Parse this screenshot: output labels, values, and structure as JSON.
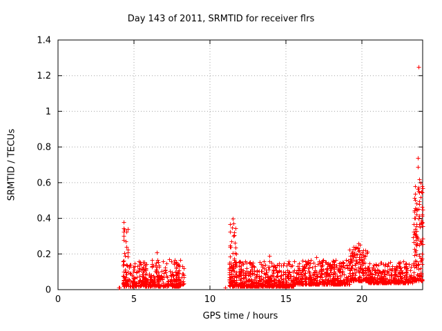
{
  "chart_data": {
    "type": "scatter",
    "title": "Day 143 of 2011, SRMTID for receiver flrs",
    "xlabel": "GPS time / hours",
    "ylabel": "SRMTID / TECUs",
    "xlim": [
      0,
      24
    ],
    "ylim": [
      0,
      1.4
    ],
    "xticks": [
      0,
      5,
      10,
      15,
      20
    ],
    "yticks": [
      0,
      0.2,
      0.4,
      0.6,
      0.8,
      1,
      1.2,
      1.4
    ],
    "grid": true,
    "legend": "none",
    "marker": "plus",
    "marker_color": "#ff0000",
    "axis_color": "#000000",
    "grid_color": "#a0a0a0",
    "series": [
      {
        "name": "SRMTID",
        "clusters": [
          {
            "x0": 3.93,
            "x1": 4.05,
            "n": 3,
            "ymin": 0.005,
            "ymax": 0.02,
            "pow": 1.0
          },
          {
            "x0": 4.25,
            "x1": 4.6,
            "n": 35,
            "ymin": 0.03,
            "ymax": 0.36,
            "pow": 2.2
          },
          {
            "x0": 4.3,
            "x1": 8.05,
            "n": 380,
            "ymin": 0.02,
            "ymax": 0.17,
            "pow": 3.0
          },
          {
            "x0": 7.7,
            "x1": 8.3,
            "n": 40,
            "ymin": 0.03,
            "ymax": 0.17,
            "pow": 2.3
          },
          {
            "x0": 11.3,
            "x1": 11.75,
            "n": 55,
            "ymin": 0.04,
            "ymax": 0.38,
            "pow": 2.2
          },
          {
            "x0": 11.25,
            "x1": 15.5,
            "n": 520,
            "ymin": 0.02,
            "ymax": 0.16,
            "pow": 3.0
          },
          {
            "x0": 15.5,
            "x1": 19.2,
            "n": 460,
            "ymin": 0.03,
            "ymax": 0.17,
            "pow": 2.8
          },
          {
            "x0": 19.2,
            "x1": 20.4,
            "n": 160,
            "ymin": 0.05,
            "ymax": 0.24,
            "pow": 2.2
          },
          {
            "x0": 20.4,
            "x1": 23.35,
            "n": 330,
            "ymin": 0.04,
            "ymax": 0.16,
            "pow": 2.8
          },
          {
            "x0": 23.35,
            "x1": 24.0,
            "n": 130,
            "ymin": 0.05,
            "ymax": 0.58,
            "pow": 2.6
          }
        ],
        "outliers": [
          [
            4.33,
            0.38
          ],
          [
            4.38,
            0.335
          ],
          [
            4.3,
            0.3
          ],
          [
            4.45,
            0.27
          ],
          [
            4.5,
            0.24
          ],
          [
            6.52,
            0.21
          ],
          [
            7.3,
            0.17
          ],
          [
            11.0,
            0.01
          ],
          [
            11.5,
            0.4
          ],
          [
            11.45,
            0.35
          ],
          [
            11.55,
            0.3
          ],
          [
            13.9,
            0.19
          ],
          [
            17.0,
            0.18
          ],
          [
            19.6,
            0.24
          ],
          [
            19.75,
            0.26
          ],
          [
            19.85,
            0.25
          ],
          [
            23.6,
            0.42
          ],
          [
            23.65,
            0.45
          ],
          [
            23.68,
            0.74
          ],
          [
            23.7,
            0.69
          ],
          [
            23.72,
            1.25
          ],
          [
            23.75,
            0.48
          ],
          [
            23.78,
            0.62
          ],
          [
            23.85,
            0.52
          ],
          [
            23.88,
            0.6
          ],
          [
            23.92,
            0.55
          ],
          [
            23.95,
            0.58
          ],
          [
            23.98,
            0.57
          ]
        ]
      }
    ]
  }
}
